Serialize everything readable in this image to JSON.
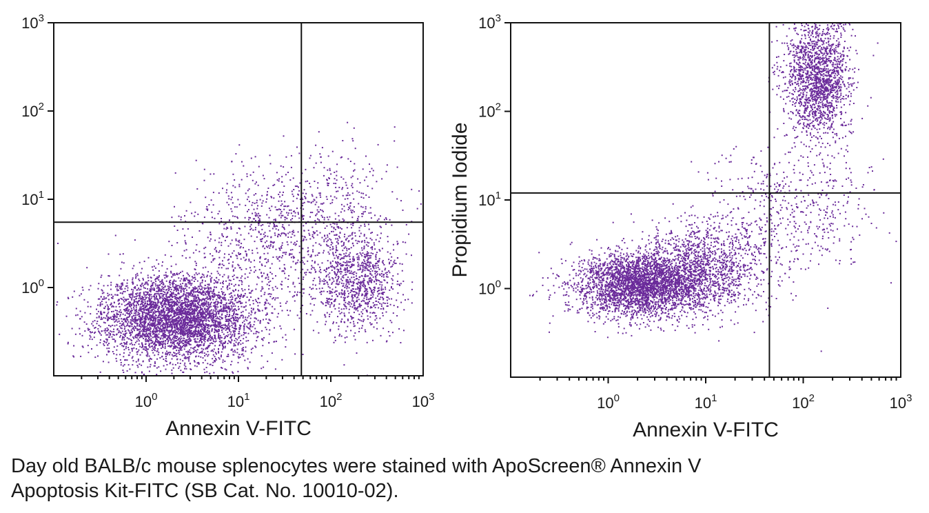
{
  "chart_data": [
    {
      "type": "scatter",
      "xlabel": "Annexin V-FITC",
      "ylabel": "",
      "x_scale": "log",
      "y_scale": "log",
      "xlim": [
        0.1,
        1000
      ],
      "ylim": [
        0.1,
        1000
      ],
      "x_ticks": [
        {
          "value": 1,
          "base": "10",
          "exp": "0"
        },
        {
          "value": 10,
          "base": "10",
          "exp": "1"
        },
        {
          "value": 100,
          "base": "10",
          "exp": "2"
        },
        {
          "value": 1000,
          "base": "10",
          "exp": "3"
        }
      ],
      "y_ticks": [
        {
          "value": 1,
          "base": "10",
          "exp": "0"
        },
        {
          "value": 10,
          "base": "10",
          "exp": "1"
        },
        {
          "value": 100,
          "base": "10",
          "exp": "2"
        },
        {
          "value": 1000,
          "base": "10",
          "exp": "3"
        }
      ],
      "quadrant_gate": {
        "x": 48,
        "y": 5.5
      },
      "point_color": "#6a2a9a",
      "populations": [
        {
          "x_center": 2.2,
          "y_center": 0.45,
          "x_spread": 0.42,
          "y_spread": 0.25,
          "count": 4200
        },
        {
          "x_center": 190,
          "y_center": 1.2,
          "x_spread": 0.25,
          "y_spread": 0.3,
          "count": 1000
        },
        {
          "x_center": 20,
          "y_center": 3.5,
          "x_spread": 0.45,
          "y_spread": 0.4,
          "count": 700
        },
        {
          "x_center": 100,
          "y_center": 8,
          "x_spread": 0.4,
          "y_spread": 0.35,
          "count": 350
        }
      ],
      "grid": false,
      "legend": "none"
    },
    {
      "type": "scatter",
      "xlabel": "Annexin V-FITC",
      "ylabel": "Propidium Iodide",
      "x_scale": "log",
      "y_scale": "log",
      "xlim": [
        0.1,
        1000
      ],
      "ylim": [
        0.1,
        1000
      ],
      "x_ticks": [
        {
          "value": 1,
          "base": "10",
          "exp": "0"
        },
        {
          "value": 10,
          "base": "10",
          "exp": "1"
        },
        {
          "value": 100,
          "base": "10",
          "exp": "2"
        },
        {
          "value": 1000,
          "base": "10",
          "exp": "3"
        }
      ],
      "y_ticks": [
        {
          "value": 1,
          "base": "10",
          "exp": "0"
        },
        {
          "value": 10,
          "base": "10",
          "exp": "1"
        },
        {
          "value": 100,
          "base": "10",
          "exp": "2"
        },
        {
          "value": 1000,
          "base": "10",
          "exp": "3"
        }
      ],
      "quadrant_gate": {
        "x": 45,
        "y": 12
      },
      "point_color": "#6a2a9a",
      "populations": [
        {
          "x_center": 2.2,
          "y_center": 1.1,
          "x_spread": 0.35,
          "y_spread": 0.18,
          "count": 3200
        },
        {
          "x_center": 10,
          "y_center": 1.8,
          "x_spread": 0.35,
          "y_spread": 0.25,
          "count": 1200
        },
        {
          "x_center": 140,
          "y_center": 250,
          "x_spread": 0.17,
          "y_spread": 0.35,
          "count": 1700
        },
        {
          "x_center": 80,
          "y_center": 8,
          "x_spread": 0.4,
          "y_spread": 0.4,
          "count": 500
        }
      ],
      "grid": false,
      "legend": "none"
    }
  ],
  "caption": {
    "line1": "Day old BALB/c mouse splenocytes were stained with ApoScreen® Annexin V",
    "line2": "Apoptosis Kit-FITC (SB Cat. No. 10010-02)."
  }
}
